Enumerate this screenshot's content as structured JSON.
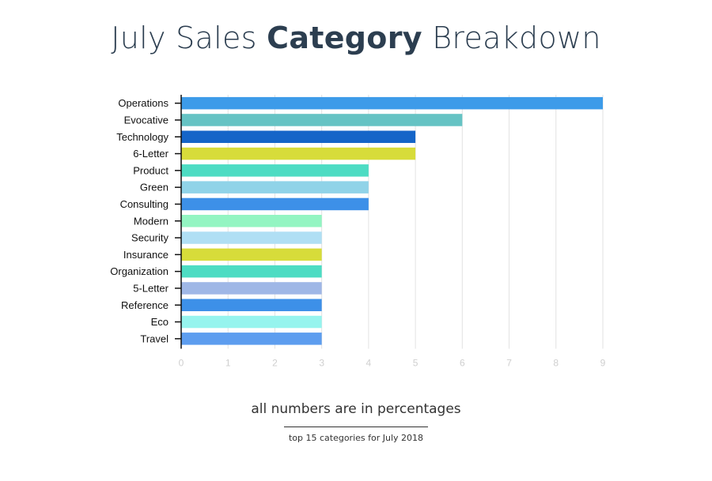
{
  "title": {
    "part1": "July Sales ",
    "bold": "Category",
    "part2": " Breakdown"
  },
  "footer": {
    "note": "all numbers are in percentages",
    "sub": "top 15 categories for July 2018"
  },
  "chart_data": {
    "type": "bar",
    "orientation": "horizontal",
    "title": "July Sales Category Breakdown",
    "xlabel": "",
    "ylabel": "",
    "xlim": [
      0,
      9
    ],
    "xticks": [
      0,
      1,
      2,
      3,
      4,
      5,
      6,
      7,
      8,
      9
    ],
    "grid": true,
    "legend": "none",
    "categories": [
      "Operations",
      "Evocative",
      "Technology",
      "6-Letter",
      "Product",
      "Green",
      "Consulting",
      "Modern",
      "Security",
      "Insurance",
      "Organization",
      "5-Letter",
      "Reference",
      "Eco",
      "Travel"
    ],
    "values": [
      9,
      6,
      5,
      5,
      4,
      4,
      4,
      3,
      3,
      3,
      3,
      3,
      3,
      3,
      3
    ],
    "colors": [
      "#3d9be9",
      "#65c3c4",
      "#1565c8",
      "#d7dc3a",
      "#4ddcc3",
      "#90d3e8",
      "#3d90e8",
      "#93f5c2",
      "#b0dff4",
      "#d7dc3a",
      "#4ddcc3",
      "#9fb7e6",
      "#3d90e8",
      "#96f4ee",
      "#5d9def"
    ]
  }
}
